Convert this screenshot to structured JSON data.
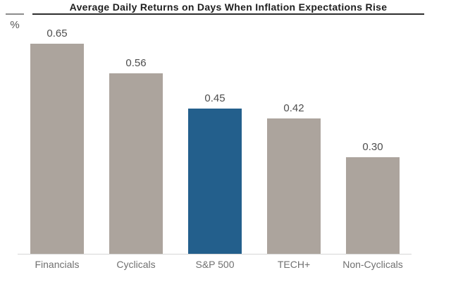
{
  "chart_data": {
    "type": "bar",
    "title": "Average Daily Returns on Days When Inflation Expectations Rise",
    "ylabel": "%",
    "categories": [
      "Financials",
      "Cyclicals",
      "S&P 500",
      "TECH+",
      "Non-Cyclicals"
    ],
    "values": [
      0.65,
      0.56,
      0.45,
      0.42,
      0.3
    ],
    "value_labels": [
      "0.65",
      "0.56",
      "0.45",
      "0.42",
      "0.30"
    ],
    "highlight_index": 2,
    "highlight_category": "S&P 500",
    "ylim": [
      0,
      0.8
    ],
    "grid": false,
    "legend": false,
    "colors": {
      "bar_default": "#ACA49D",
      "bar_highlight": "#235F8C",
      "axis_line": "#D6D6D6",
      "title_text": "#1F1F1F",
      "title_rule": "#2E2E2E",
      "unit_rule": "#8C8C8C",
      "value_label_text": "#4D4D4D",
      "category_label_text": "#707070"
    }
  }
}
